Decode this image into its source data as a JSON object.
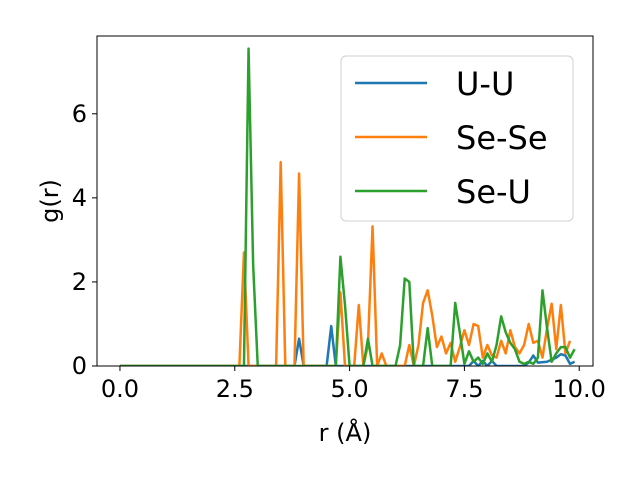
{
  "chart_data": {
    "type": "line",
    "title": "",
    "xlabel": "r (Å)",
    "ylabel": "g(r)",
    "xlim": [
      -0.5,
      10.3
    ],
    "ylim": [
      0,
      7.85
    ],
    "xticks": [
      0.0,
      2.5,
      5.0,
      7.5,
      10.0
    ],
    "xtick_labels": [
      "0.0",
      "2.5",
      "5.0",
      "7.5",
      "10.0"
    ],
    "yticks": [
      0,
      2,
      4,
      6
    ],
    "ytick_labels": [
      "0",
      "2",
      "4",
      "6"
    ],
    "grid": false,
    "legend_position": "upper-right",
    "series": [
      {
        "name": "U-U",
        "color": "#1f77b4",
        "points": [
          [
            0,
            0
          ],
          [
            2.6,
            0
          ],
          [
            3.8,
            0
          ],
          [
            3.9,
            0.65
          ],
          [
            4.0,
            0
          ],
          [
            4.5,
            0
          ],
          [
            4.6,
            0.95
          ],
          [
            4.7,
            0
          ],
          [
            7.6,
            0
          ],
          [
            7.7,
            0.12
          ],
          [
            7.8,
            0
          ],
          [
            7.9,
            0.12
          ],
          [
            8.0,
            0
          ],
          [
            8.1,
            0.12
          ],
          [
            8.2,
            0
          ],
          [
            8.8,
            0
          ],
          [
            8.9,
            0.08
          ],
          [
            9.0,
            0.25
          ],
          [
            9.1,
            0.08
          ],
          [
            9.3,
            0.1
          ],
          [
            9.5,
            0.2
          ],
          [
            9.6,
            0.28
          ],
          [
            9.7,
            0.25
          ],
          [
            9.8,
            0.05
          ],
          [
            9.9,
            0.1
          ]
        ]
      },
      {
        "name": "Se-Se",
        "color": "#ff7f0e",
        "points": [
          [
            0,
            0
          ],
          [
            2.6,
            0
          ],
          [
            2.7,
            2.7
          ],
          [
            2.8,
            0
          ],
          [
            3.4,
            0
          ],
          [
            3.5,
            4.85
          ],
          [
            3.6,
            0
          ],
          [
            3.8,
            0
          ],
          [
            3.9,
            4.58
          ],
          [
            4.0,
            0
          ],
          [
            4.7,
            0
          ],
          [
            4.8,
            1.75
          ],
          [
            4.9,
            0
          ],
          [
            5.1,
            0
          ],
          [
            5.2,
            1.45
          ],
          [
            5.3,
            0
          ],
          [
            5.4,
            0.5
          ],
          [
            5.5,
            3.32
          ],
          [
            5.6,
            0
          ],
          [
            5.7,
            0.3
          ],
          [
            5.8,
            0
          ],
          [
            6.2,
            0
          ],
          [
            6.3,
            0.5
          ],
          [
            6.4,
            0
          ],
          [
            6.5,
            0.5
          ],
          [
            6.6,
            1.5
          ],
          [
            6.7,
            1.8
          ],
          [
            6.8,
            1.2
          ],
          [
            6.9,
            0.45
          ],
          [
            7.0,
            0.7
          ],
          [
            7.1,
            0.3
          ],
          [
            7.2,
            0.55
          ],
          [
            7.3,
            0.1
          ],
          [
            7.4,
            0.45
          ],
          [
            7.5,
            0.85
          ],
          [
            7.6,
            0.5
          ],
          [
            7.7,
            1.0
          ],
          [
            7.8,
            0.95
          ],
          [
            7.9,
            0.2
          ],
          [
            8.0,
            0.5
          ],
          [
            8.1,
            0.25
          ],
          [
            8.2,
            0.2
          ],
          [
            8.3,
            0.6
          ],
          [
            8.4,
            0.3
          ],
          [
            8.5,
            0.85
          ],
          [
            8.6,
            0.45
          ],
          [
            8.7,
            0.3
          ],
          [
            8.8,
            0.5
          ],
          [
            8.9,
            1.0
          ],
          [
            9.0,
            0.55
          ],
          [
            9.1,
            0.6
          ],
          [
            9.2,
            0.2
          ],
          [
            9.3,
            0.9
          ],
          [
            9.4,
            1.48
          ],
          [
            9.5,
            0.4
          ],
          [
            9.6,
            1.45
          ],
          [
            9.7,
            0.3
          ],
          [
            9.8,
            0.6
          ]
        ]
      },
      {
        "name": "Se-U",
        "color": "#2ca02c",
        "points": [
          [
            0,
            0
          ],
          [
            2.6,
            0
          ],
          [
            2.7,
            0
          ],
          [
            2.8,
            7.55
          ],
          [
            2.9,
            2.4
          ],
          [
            3.0,
            0
          ],
          [
            4.7,
            0
          ],
          [
            4.8,
            2.6
          ],
          [
            4.9,
            1.45
          ],
          [
            5.0,
            0
          ],
          [
            5.3,
            0
          ],
          [
            5.4,
            0.65
          ],
          [
            5.5,
            0
          ],
          [
            6.0,
            0
          ],
          [
            6.1,
            0.5
          ],
          [
            6.2,
            2.08
          ],
          [
            6.3,
            2.0
          ],
          [
            6.4,
            0
          ],
          [
            6.6,
            0
          ],
          [
            6.7,
            0.9
          ],
          [
            6.8,
            0
          ],
          [
            7.2,
            0
          ],
          [
            7.3,
            1.5
          ],
          [
            7.4,
            0.8
          ],
          [
            7.5,
            0.05
          ],
          [
            7.6,
            0.35
          ],
          [
            7.7,
            0.1
          ],
          [
            7.8,
            0.2
          ],
          [
            7.9,
            0.05
          ],
          [
            8.0,
            0.3
          ],
          [
            8.1,
            0.1
          ],
          [
            8.2,
            0.5
          ],
          [
            8.3,
            1.18
          ],
          [
            8.4,
            0.8
          ],
          [
            8.5,
            0.55
          ],
          [
            8.6,
            0.4
          ],
          [
            8.7,
            0.1
          ],
          [
            8.8,
            0.05
          ],
          [
            8.9,
            0.1
          ],
          [
            9.0,
            0.05
          ],
          [
            9.1,
            0.2
          ],
          [
            9.2,
            1.8
          ],
          [
            9.3,
            0.9
          ],
          [
            9.4,
            0.1
          ],
          [
            9.5,
            0.3
          ],
          [
            9.6,
            0.45
          ],
          [
            9.7,
            0.45
          ],
          [
            9.8,
            0.2
          ],
          [
            9.9,
            0.4
          ]
        ]
      }
    ]
  }
}
